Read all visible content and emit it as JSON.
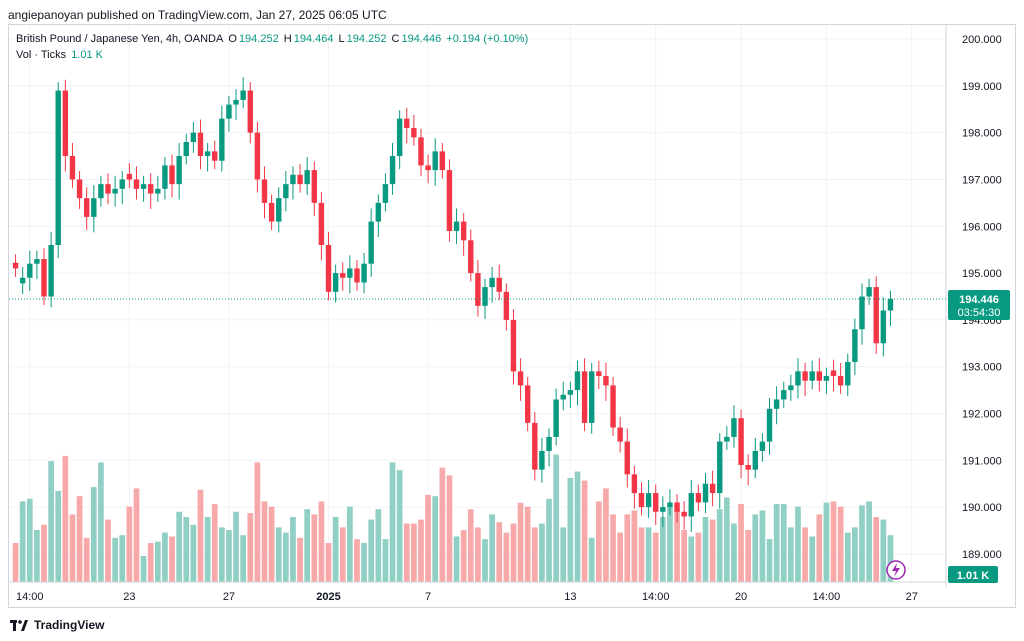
{
  "publisher": "angiepanoyan published on TradingView.com, Jan 27, 2025 06:05 UTC",
  "legend": {
    "symbol": "British Pound / Japanese Yen, 4h, OANDA",
    "o_label": "O",
    "o": "194.252",
    "h_label": "H",
    "h": "194.464",
    "l_label": "L",
    "l": "194.252",
    "c_label": "C",
    "c": "194.446",
    "change": "+0.194 (+0.10%)",
    "vol_label": "Vol · Ticks",
    "vol_value": "1.01 K"
  },
  "footer": {
    "brand": "TradingView",
    "logo_icon": "tradingview-logo-icon"
  },
  "colors": {
    "up": "#089981",
    "down": "#f23645",
    "vol_up": "#8fcfc4",
    "vol_down": "#f7a9a9",
    "grid": "#f0f3fa"
  },
  "chart_data": {
    "type": "candlestick",
    "y_axis": {
      "ticks": [
        "200.000",
        "199.000",
        "198.000",
        "197.000",
        "196.000",
        "195.000",
        "194.000",
        "193.000",
        "192.000",
        "191.000",
        "190.000",
        "189.000"
      ],
      "range": [
        188.4,
        200.3
      ]
    },
    "x_axis": {
      "ticks": [
        {
          "bar": 2,
          "label": "14:00"
        },
        {
          "bar": 16,
          "label": "23"
        },
        {
          "bar": 30,
          "label": "27"
        },
        {
          "bar": 44,
          "label": "2025"
        },
        {
          "bar": 58,
          "label": "7"
        },
        {
          "bar": 78,
          "label": "13"
        },
        {
          "bar": 90,
          "label": "14:00"
        },
        {
          "bar": 102,
          "label": "20"
        },
        {
          "bar": 114,
          "label": "14:00"
        },
        {
          "bar": 126,
          "label": "27"
        }
      ]
    },
    "last_price": "194.446",
    "countdown": "03:54:30",
    "last_price_value": 194.446,
    "vol_last": "1.01 K",
    "closes": [
      195.1,
      194.9,
      195.2,
      195.3,
      194.5,
      195.6,
      198.9,
      197.5,
      197.0,
      196.6,
      196.2,
      196.6,
      196.9,
      196.7,
      196.8,
      197.0,
      197.0,
      196.8,
      196.9,
      196.7,
      196.8,
      197.3,
      196.9,
      197.5,
      197.8,
      198.0,
      197.5,
      197.6,
      197.4,
      198.3,
      198.6,
      198.7,
      198.9,
      198.0,
      197.0,
      196.5,
      196.1,
      196.6,
      196.9,
      197.1,
      196.9,
      197.2,
      196.5,
      195.6,
      194.6,
      195.0,
      194.9,
      195.1,
      194.8,
      195.2,
      196.1,
      196.5,
      196.9,
      197.5,
      198.3,
      198.1,
      197.9,
      197.3,
      197.2,
      197.6,
      197.2,
      195.9,
      196.1,
      195.7,
      195.0,
      194.3,
      194.7,
      194.9,
      194.6,
      194.0,
      192.9,
      192.6,
      191.8,
      190.8,
      191.2,
      191.5,
      192.3,
      192.4,
      192.5,
      192.9,
      191.8,
      192.9,
      192.8,
      192.6,
      191.7,
      191.4,
      190.7,
      190.3,
      190.0,
      190.3,
      189.9,
      190.0,
      190.1,
      189.9,
      189.8,
      190.3,
      190.1,
      190.5,
      190.3,
      191.4,
      191.5,
      191.9,
      190.9,
      190.8,
      191.2,
      191.4,
      192.1,
      192.3,
      192.5,
      192.6,
      192.9,
      192.7,
      192.9,
      192.7,
      192.8,
      192.8,
      192.6,
      193.1,
      193.8,
      194.5,
      194.7,
      193.5,
      194.2,
      194.446
    ],
    "volumes": [
      0.3,
      0.62,
      0.64,
      0.4,
      0.44,
      0.93,
      0.7,
      0.97,
      0.52,
      0.66,
      0.34,
      0.73,
      0.92,
      0.48,
      0.34,
      0.36,
      0.58,
      0.72,
      0.2,
      0.3,
      0.31,
      0.38,
      0.35,
      0.54,
      0.5,
      0.44,
      0.71,
      0.5,
      0.6,
      0.42,
      0.4,
      0.54,
      0.36,
      0.53,
      0.92,
      0.62,
      0.58,
      0.42,
      0.38,
      0.5,
      0.34,
      0.56,
      0.52,
      0.62,
      0.3,
      0.5,
      0.42,
      0.58,
      0.33,
      0.3,
      0.48,
      0.56,
      0.33,
      0.92,
      0.86,
      0.45,
      0.45,
      0.48,
      0.67,
      0.66,
      0.88,
      0.82,
      0.35,
      0.4,
      0.56,
      0.42,
      0.33,
      0.52,
      0.46,
      0.38,
      0.45,
      0.61,
      0.58,
      0.42,
      0.45,
      0.64,
      0.98,
      0.42,
      0.8,
      0.85,
      0.78,
      0.34,
      0.62,
      0.72,
      0.52,
      0.38,
      0.52,
      0.55,
      0.42,
      0.42,
      0.38,
      0.5,
      0.58,
      0.55,
      0.4,
      0.35,
      0.38,
      0.5,
      0.48,
      0.56,
      0.65,
      0.45,
      0.6,
      0.4,
      0.52,
      0.55,
      0.33,
      0.6,
      0.6,
      0.42,
      0.58,
      0.42,
      0.35,
      0.52,
      0.61,
      0.62,
      0.58,
      0.38,
      0.42,
      0.59,
      0.62,
      0.5,
      0.48,
      0.36
    ],
    "up": [
      false,
      true,
      true,
      true,
      false,
      true,
      true,
      false,
      false,
      false,
      false,
      true,
      true,
      false,
      true,
      true,
      false,
      false,
      true,
      false,
      true,
      true,
      false,
      true,
      true,
      true,
      false,
      true,
      false,
      true,
      true,
      true,
      true,
      false,
      false,
      false,
      false,
      true,
      true,
      true,
      false,
      true,
      false,
      false,
      false,
      true,
      false,
      true,
      false,
      true,
      true,
      true,
      true,
      true,
      true,
      false,
      false,
      false,
      false,
      true,
      false,
      false,
      true,
      false,
      false,
      false,
      true,
      true,
      false,
      false,
      false,
      false,
      false,
      false,
      true,
      true,
      true,
      true,
      true,
      true,
      false,
      true,
      false,
      false,
      false,
      false,
      false,
      false,
      false,
      true,
      false,
      true,
      true,
      false,
      false,
      true,
      false,
      true,
      false,
      true,
      true,
      true,
      false,
      false,
      true,
      true,
      true,
      true,
      true,
      true,
      true,
      false,
      true,
      false,
      true,
      false,
      false,
      true,
      true,
      true,
      true,
      false,
      true,
      true
    ]
  }
}
